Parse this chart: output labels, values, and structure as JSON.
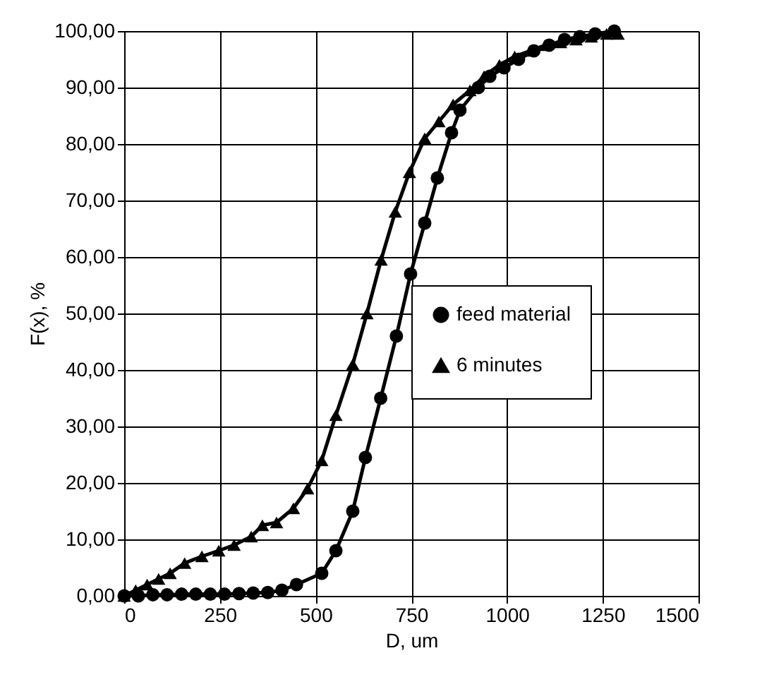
{
  "chart_data": {
    "type": "line",
    "xlabel": "D, um",
    "ylabel": "F(x), %",
    "xlim": [
      0,
      1500
    ],
    "xticks": [
      0,
      250,
      500,
      750,
      1000,
      1250,
      1500
    ],
    "ylim": [
      0,
      100
    ],
    "yticks": [
      {
        "value": 0,
        "label": "0,00"
      },
      {
        "value": 10,
        "label": "10,00"
      },
      {
        "value": 20,
        "label": "20,00"
      },
      {
        "value": 30,
        "label": "30,00"
      },
      {
        "value": 40,
        "label": "40,00"
      },
      {
        "value": 50,
        "label": "50,00"
      },
      {
        "value": 60,
        "label": "60,00"
      },
      {
        "value": 70,
        "label": "70,00"
      },
      {
        "value": 80,
        "label": "80,00"
      },
      {
        "value": 90,
        "label": "90,00"
      },
      {
        "value": 100,
        "label": "100,00"
      }
    ],
    "grid": true,
    "legend": "right",
    "line_style": "solid",
    "series": [
      {
        "name": "feed material",
        "color": "#000000",
        "marker": "circle",
        "x": [
          0,
          37,
          75,
          112,
          150,
          187,
          225,
          262,
          300,
          337,
          375,
          412,
          450,
          516,
          553,
          597,
          630,
          670,
          711,
          748,
          785,
          818,
          855,
          877,
          925,
          955,
          992,
          1030,
          1070,
          1110,
          1150,
          1190,
          1230,
          1280
        ],
        "values": [
          0,
          0,
          0.2,
          0.2,
          0.3,
          0.3,
          0.3,
          0.3,
          0.4,
          0.5,
          0.6,
          1,
          2,
          4,
          8,
          15,
          24.5,
          35,
          46,
          57,
          66,
          74,
          82,
          86,
          90,
          92,
          93.5,
          95,
          96.5,
          97.5,
          98.5,
          99,
          99.5,
          100
        ]
      },
      {
        "name": "6 minutes",
        "color": "#000000",
        "marker": "triangle",
        "x": [
          0,
          30,
          60,
          90,
          120,
          158,
          203,
          247,
          287,
          332,
          361,
          398,
          442,
          479,
          516,
          553,
          597,
          634,
          671,
          708,
          745,
          785,
          822,
          859,
          903,
          940,
          980,
          1020,
          1060,
          1100,
          1140,
          1180,
          1220,
          1260,
          1290
        ],
        "values": [
          0,
          1,
          2,
          3,
          4,
          5.8,
          7,
          8,
          9,
          10.5,
          12.5,
          13,
          15.5,
          19,
          24,
          32,
          41,
          50,
          59.5,
          68,
          75,
          81,
          84,
          87,
          89.5,
          92,
          94,
          95.5,
          96.5,
          97.5,
          98,
          98.5,
          99,
          99.5,
          99.5
        ]
      }
    ]
  }
}
